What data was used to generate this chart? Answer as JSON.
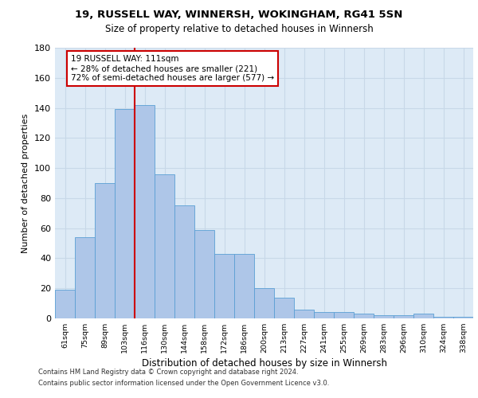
{
  "title_line1": "19, RUSSELL WAY, WINNERSH, WOKINGHAM, RG41 5SN",
  "title_line2": "Size of property relative to detached houses in Winnersh",
  "xlabel": "Distribution of detached houses by size in Winnersh",
  "ylabel": "Number of detached properties",
  "footer_line1": "Contains HM Land Registry data © Crown copyright and database right 2024.",
  "footer_line2": "Contains public sector information licensed under the Open Government Licence v3.0.",
  "bar_labels": [
    "61sqm",
    "75sqm",
    "89sqm",
    "103sqm",
    "116sqm",
    "130sqm",
    "144sqm",
    "158sqm",
    "172sqm",
    "186sqm",
    "200sqm",
    "213sqm",
    "227sqm",
    "241sqm",
    "255sqm",
    "269sqm",
    "283sqm",
    "296sqm",
    "310sqm",
    "324sqm",
    "338sqm"
  ],
  "bar_heights": [
    19,
    54,
    90,
    139,
    142,
    96,
    75,
    59,
    43,
    43,
    20,
    14,
    6,
    4,
    4,
    3,
    2,
    2,
    3,
    1,
    1
  ],
  "bar_color": "#aec6e8",
  "bar_edge_color": "#5a9fd4",
  "grid_color": "#c8d8e8",
  "background_color": "#ddeaf6",
  "vline_color": "#cc0000",
  "vline_x_index": 3.5,
  "annotation_text": "19 RUSSELL WAY: 111sqm\n← 28% of detached houses are smaller (221)\n72% of semi-detached houses are larger (577) →",
  "annotation_box_color": "#ffffff",
  "annotation_box_edge_color": "#cc0000",
  "ylim": [
    0,
    180
  ],
  "yticks": [
    0,
    20,
    40,
    60,
    80,
    100,
    120,
    140,
    160,
    180
  ]
}
